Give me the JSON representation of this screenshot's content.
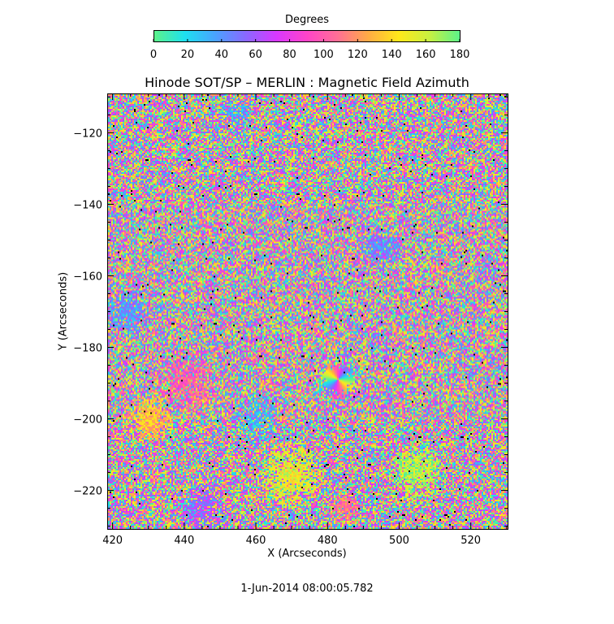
{
  "chart_data": {
    "type": "heatmap",
    "title": "Hinode SOT/SP – MERLIN : Magnetic Field Azimuth",
    "xlabel": "X (Arcseconds)",
    "ylabel": "Y (Arcseconds)",
    "xlim": [
      418.5,
      530.5
    ],
    "ylim": [
      -231,
      -109
    ],
    "x_ticks": [
      420,
      440,
      460,
      480,
      500,
      520
    ],
    "x_tick_labels": [
      "420",
      "440",
      "460",
      "480",
      "500",
      "520"
    ],
    "y_ticks": [
      -120,
      -140,
      -160,
      -180,
      -200,
      -220
    ],
    "y_tick_labels": [
      "−120",
      "−140",
      "−160",
      "−180",
      "−200",
      "−220"
    ],
    "colorbar": {
      "title": "Degrees",
      "range": [
        0,
        180
      ],
      "ticks": [
        0,
        20,
        40,
        60,
        80,
        100,
        120,
        140,
        160,
        180
      ],
      "tick_labels": [
        "0",
        "20",
        "40",
        "60",
        "80",
        "100",
        "120",
        "140",
        "160",
        "180"
      ],
      "colormap": [
        "#5cf28a",
        "#1de0f0",
        "#4aa2ff",
        "#8a68ff",
        "#d838ff",
        "#ff44c8",
        "#ff6f95",
        "#ffab45",
        "#ffe81a",
        "#c8f040",
        "#5cf28a"
      ]
    },
    "features": [
      {
        "x": 483,
        "y": -189,
        "description": "pinwheel azimuth pattern"
      }
    ],
    "timestamp": "1-Jun-2014 08:00:05.782"
  }
}
